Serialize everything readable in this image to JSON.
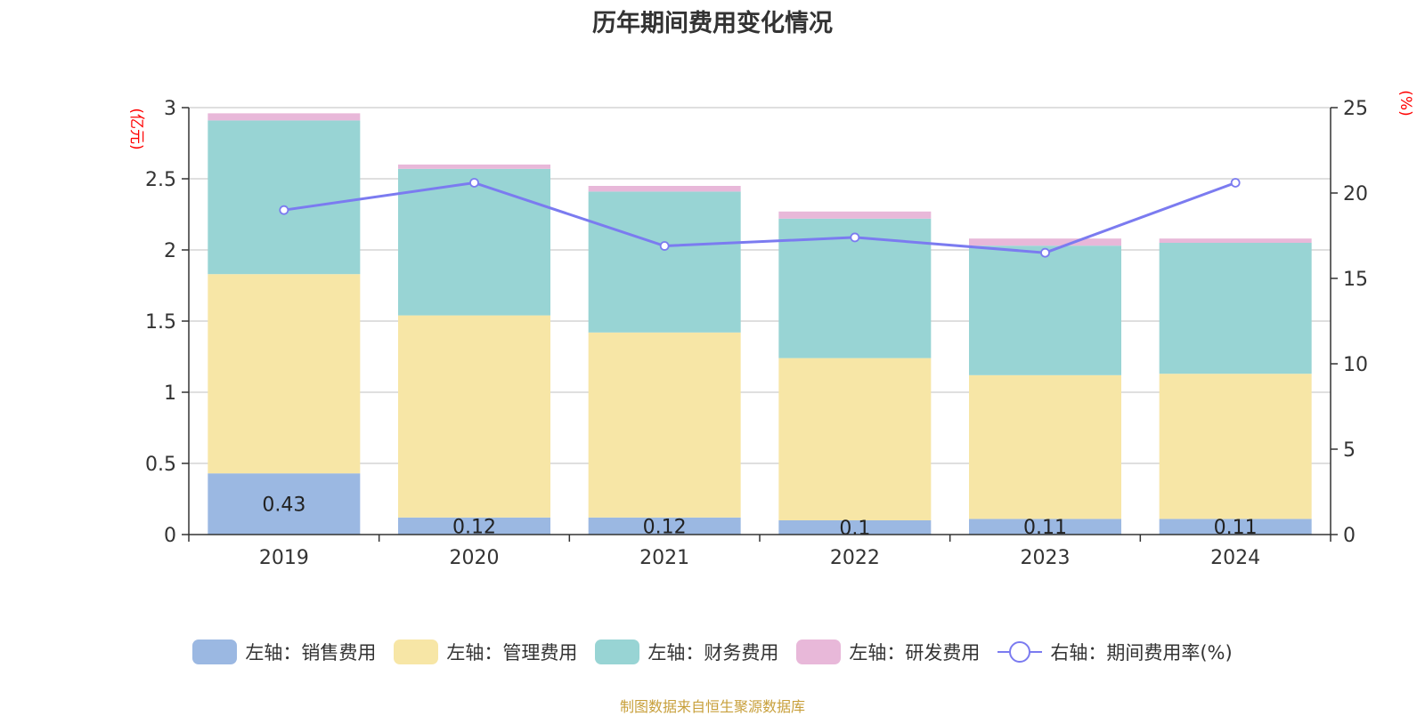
{
  "title": "历年期间费用变化情况",
  "source": "制图数据来自恒生聚源数据库",
  "chart_data": {
    "type": "bar",
    "stacked": true,
    "categories": [
      "2019",
      "2020",
      "2021",
      "2022",
      "2023",
      "2024"
    ],
    "left_axis": {
      "unit_label": "(亿元)",
      "ylim": [
        0,
        3
      ],
      "ticks": [
        "0",
        "0.5",
        "1",
        "1.5",
        "2",
        "2.5",
        "3"
      ]
    },
    "right_axis": {
      "unit_label": "(%)",
      "ylim": [
        0,
        25
      ],
      "ticks": [
        "0",
        "5",
        "10",
        "15",
        "20",
        "25"
      ]
    },
    "series": [
      {
        "name": "左轴：销售费用",
        "axis": "left",
        "type": "bar",
        "color": "#9bb8e2",
        "values": [
          0.43,
          0.12,
          0.12,
          0.1,
          0.11,
          0.11
        ],
        "labels": [
          "0.43",
          "0.12",
          "0.12",
          "0.1",
          "0.11",
          "0.11"
        ]
      },
      {
        "name": "左轴：管理费用",
        "axis": "left",
        "type": "bar",
        "color": "#f7e6a6",
        "values": [
          1.4,
          1.42,
          1.3,
          1.14,
          1.01,
          1.02
        ]
      },
      {
        "name": "左轴：财务费用",
        "axis": "left",
        "type": "bar",
        "color": "#98d4d4",
        "values": [
          1.08,
          1.03,
          0.99,
          0.98,
          0.91,
          0.92
        ]
      },
      {
        "name": "左轴：研发费用",
        "axis": "left",
        "type": "bar",
        "color": "#e8b8d9",
        "values": [
          0.05,
          0.03,
          0.04,
          0.05,
          0.05,
          0.03
        ]
      },
      {
        "name": "右轴：期间费用率(%)",
        "axis": "right",
        "type": "line",
        "color": "#7b7bf0",
        "values": [
          19.0,
          20.6,
          16.9,
          17.4,
          16.5,
          20.6
        ]
      }
    ],
    "grid": true,
    "legend_position": "bottom"
  }
}
